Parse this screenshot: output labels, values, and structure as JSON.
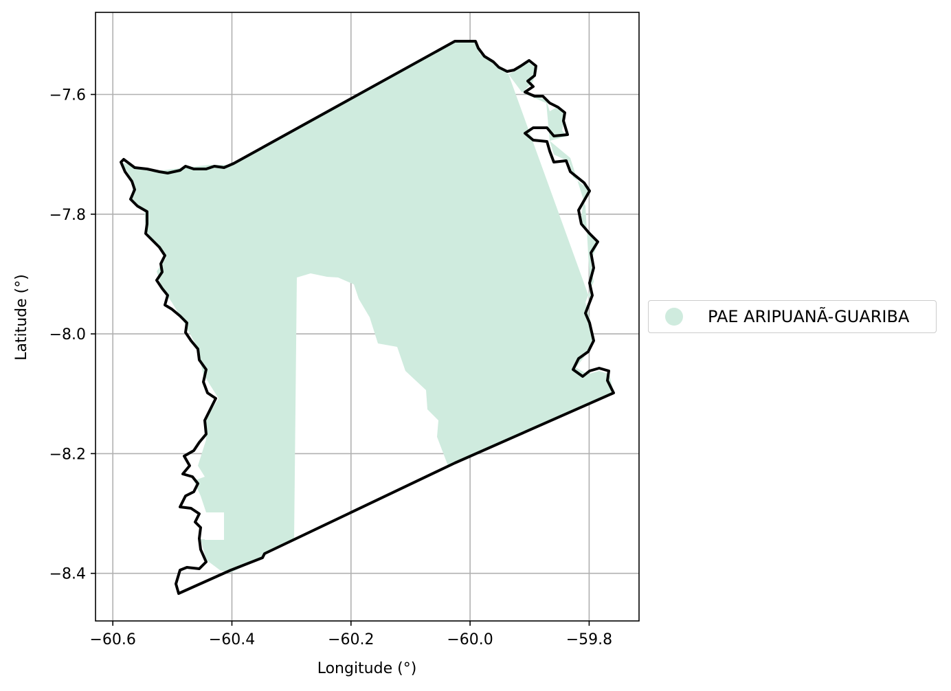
{
  "chart_data": {
    "type": "map",
    "xlabel": "Longitude (°)",
    "ylabel": "Latitude (°)",
    "xlim": [
      -60.63,
      -59.71
    ],
    "ylim": [
      -8.48,
      -7.46
    ],
    "xticks": [
      -60.6,
      -60.4,
      -60.2,
      -60.0,
      -59.8
    ],
    "xtick_labels": [
      "−60.6",
      "−60.4",
      "−60.2",
      "−60.0",
      "−59.8"
    ],
    "yticks": [
      -7.6,
      -7.8,
      -8.0,
      -8.2,
      -8.4
    ],
    "ytick_labels": [
      "−7.6",
      "−7.8",
      "−8.0",
      "−8.2",
      "−8.4"
    ],
    "grid": true,
    "legend_position": "right",
    "series": [
      {
        "name": "PAE ARIPUANÃ-GUARIBA",
        "color": "#cfebde"
      }
    ],
    "outline_color": "#000000"
  }
}
